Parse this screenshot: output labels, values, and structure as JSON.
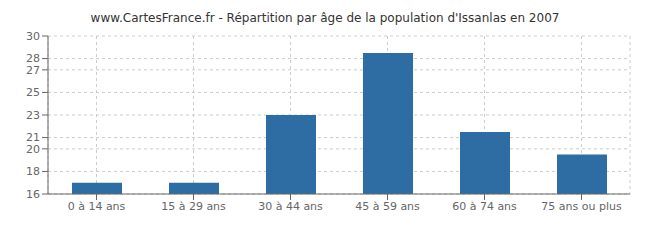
{
  "chart_data": {
    "type": "bar",
    "title": "www.CartesFrance.fr - Répartition par âge de la population d'Issanlas en 2007",
    "categories": [
      "0 à 14 ans",
      "15 à 29 ans",
      "30 à 44 ans",
      "45 à 59 ans",
      "60 à 74 ans",
      "75 ans ou plus"
    ],
    "values": [
      17.0,
      17.0,
      23.0,
      28.5,
      21.5,
      19.5
    ],
    "color": "#2e6da4",
    "ylim": [
      16,
      30
    ],
    "yticks": [
      16,
      18,
      20,
      21,
      23,
      25,
      27,
      28,
      30
    ],
    "grid": true
  }
}
